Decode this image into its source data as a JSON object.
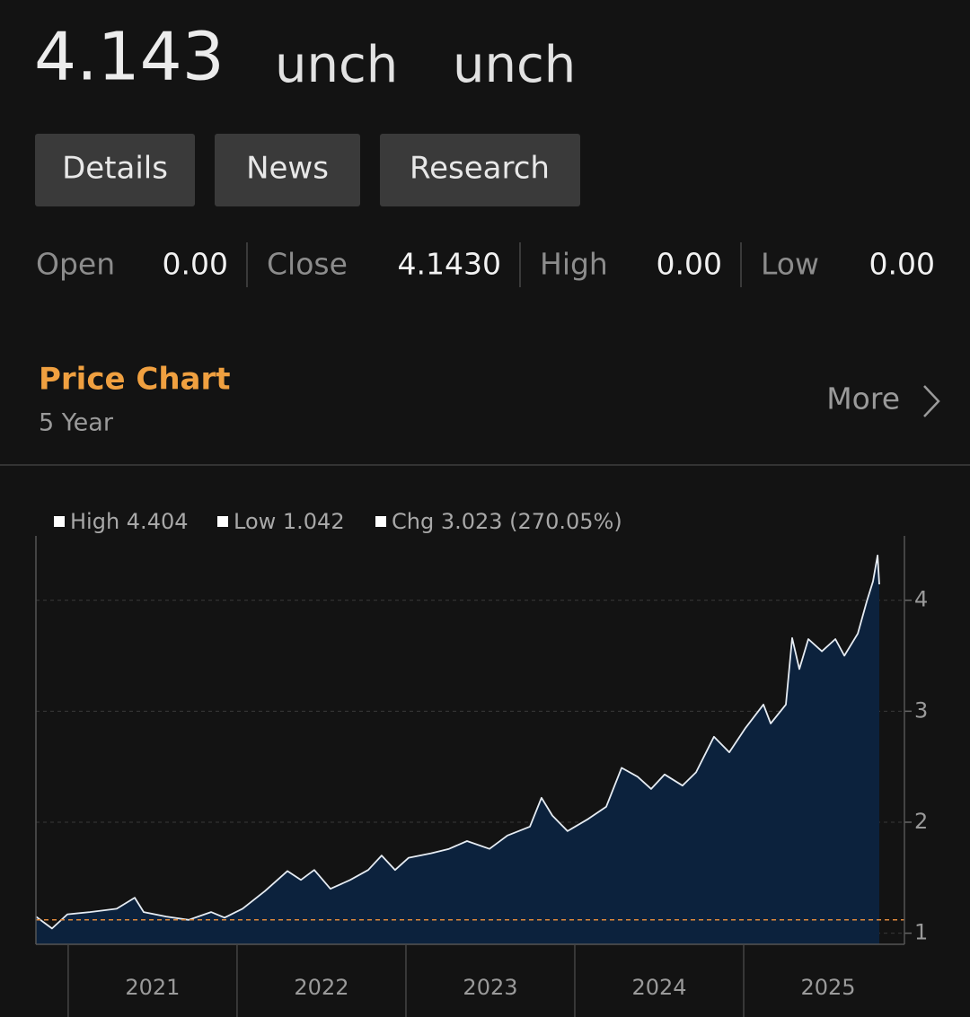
{
  "quote": {
    "price": "4.143",
    "change": "unch",
    "percent": "unch"
  },
  "tabs": [
    "Details",
    "News",
    "Research"
  ],
  "stats": [
    {
      "label": "Open",
      "value": "0.00"
    },
    {
      "label": "Close",
      "value": "4.1430"
    },
    {
      "label": "High",
      "value": "0.00"
    },
    {
      "label": "Low",
      "value": "0.00"
    }
  ],
  "section": {
    "title": "Price Chart",
    "subtitle": "5 Year",
    "more": "More"
  },
  "chart_data": {
    "type": "area",
    "legend": [
      "High 4.404",
      "Low 1.042",
      "Chg 3.023 (270.05%)"
    ],
    "x": [
      2020.809,
      2020.904,
      2020.995,
      2021.128,
      2021.287,
      2021.394,
      2021.447,
      2021.58,
      2021.713,
      2021.846,
      2021.926,
      2022.032,
      2022.165,
      2022.298,
      2022.378,
      2022.457,
      2022.553,
      2022.67,
      2022.777,
      2022.856,
      2022.936,
      2023.016,
      2023.149,
      2023.255,
      2023.362,
      2023.495,
      2023.601,
      2023.734,
      2023.803,
      2023.867,
      2023.957,
      2024.08,
      2024.186,
      2024.277,
      2024.372,
      2024.452,
      2024.532,
      2024.638,
      2024.718,
      2024.824,
      2024.915,
      2025.011,
      2025.117,
      2025.16,
      2025.25,
      2025.287,
      2025.33,
      2025.383,
      2025.463,
      2025.543,
      2025.596,
      2025.676,
      2025.729,
      2025.766,
      2025.793,
      2025.803
    ],
    "values": [
      1.15,
      1.042,
      1.17,
      1.19,
      1.22,
      1.32,
      1.19,
      1.15,
      1.12,
      1.19,
      1.14,
      1.22,
      1.38,
      1.56,
      1.48,
      1.57,
      1.4,
      1.48,
      1.57,
      1.7,
      1.57,
      1.68,
      1.72,
      1.76,
      1.83,
      1.76,
      1.88,
      1.96,
      2.22,
      2.06,
      1.92,
      2.03,
      2.14,
      2.49,
      2.41,
      2.3,
      2.43,
      2.33,
      2.45,
      2.77,
      2.63,
      2.85,
      3.06,
      2.89,
      3.06,
      3.66,
      3.38,
      3.65,
      3.54,
      3.65,
      3.5,
      3.7,
      3.99,
      4.17,
      4.404,
      4.143
    ],
    "line_color": "#e6ecf3",
    "fill_color": "#0c223d",
    "baseline": 1.12,
    "baseline_color": "#e08a3c",
    "xlim": [
      2020.809,
      2025.952
    ],
    "xticks": [
      2021,
      2022,
      2023,
      2024,
      2025
    ],
    "ylim": [
      0.9,
      4.58
    ],
    "yticks": [
      1,
      2,
      3,
      4
    ],
    "grid": true
  }
}
